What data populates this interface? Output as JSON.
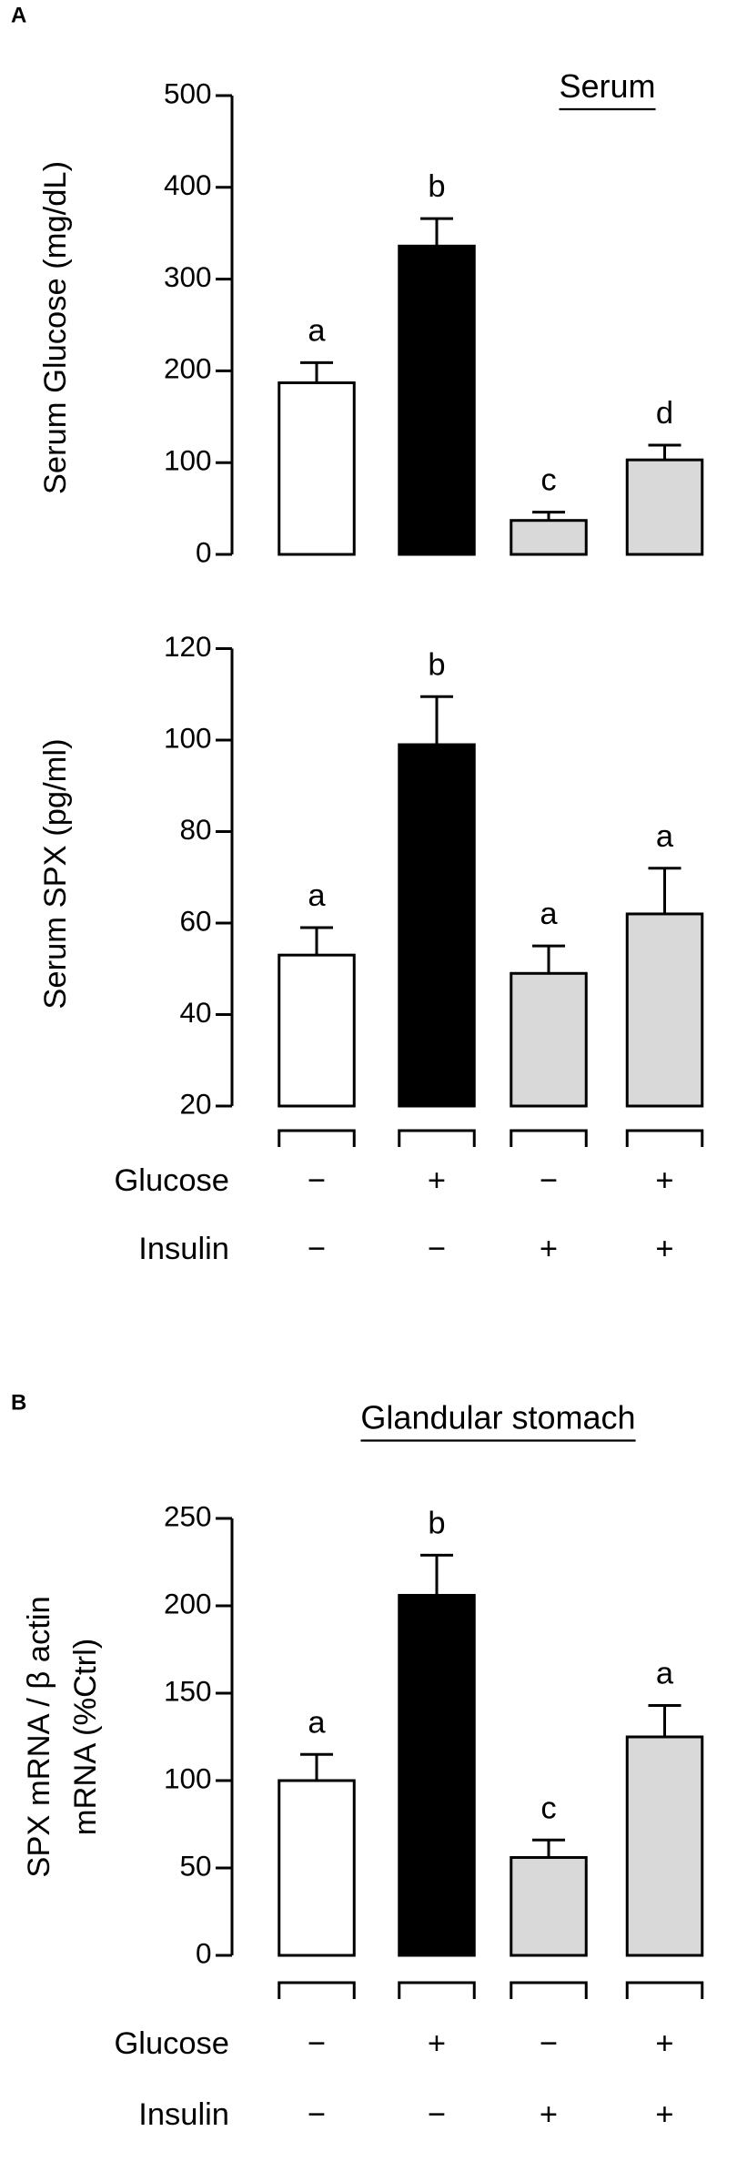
{
  "chart_data": [
    {
      "type": "bar",
      "panel_label": "A",
      "title": "Serum",
      "y_label": [
        "Serum Glucose (mg/dL)"
      ],
      "categories": [
        null,
        null,
        null,
        null
      ],
      "values": [
        187,
        336,
        37,
        103
      ],
      "errors": [
        22,
        30,
        9,
        16
      ],
      "annotations": [
        "a",
        "b",
        "c",
        "d"
      ],
      "colors": [
        "#ffffff",
        "#000000",
        "#d9d9d9",
        "#d9d9d9"
      ],
      "ylim": [
        0,
        500
      ],
      "yticks": [
        0,
        100,
        200,
        300,
        400,
        500
      ]
    },
    {
      "type": "bar",
      "y_label": [
        "Serum SPX (pg/ml)"
      ],
      "categories": [
        null,
        null,
        null,
        null
      ],
      "values": [
        53,
        99,
        49,
        62
      ],
      "errors": [
        6,
        10.5,
        6,
        10
      ],
      "annotations": [
        "a",
        "b",
        "a",
        "a"
      ],
      "colors": [
        "#ffffff",
        "#000000",
        "#d9d9d9",
        "#d9d9d9"
      ],
      "ylim": [
        20,
        120
      ],
      "yticks": [
        20,
        40,
        60,
        80,
        100,
        120
      ],
      "treatments": [
        {
          "name": "Glucose",
          "values": [
            "−",
            "+",
            "−",
            "+"
          ]
        },
        {
          "name": "Insulin",
          "values": [
            "−",
            "−",
            "+",
            "+"
          ]
        }
      ]
    },
    {
      "type": "bar",
      "panel_label": "B",
      "title": "Glandular stomach",
      "y_label": [
        "SPX mRNA / β actin",
        "mRNA (%Ctrl)"
      ],
      "categories": [
        null,
        null,
        null,
        null
      ],
      "values": [
        100,
        206,
        56,
        125
      ],
      "errors": [
        15,
        23,
        10,
        18
      ],
      "annotations": [
        "a",
        "b",
        "c",
        "a"
      ],
      "colors": [
        "#ffffff",
        "#000000",
        "#d9d9d9",
        "#d9d9d9"
      ],
      "ylim": [
        0,
        250
      ],
      "yticks": [
        0,
        50,
        100,
        150,
        200,
        250
      ],
      "treatments": [
        {
          "name": "Glucose",
          "values": [
            "−",
            "+",
            "−",
            "+"
          ]
        },
        {
          "name": "Insulin",
          "values": [
            "−",
            "−",
            "+",
            "+"
          ]
        }
      ]
    }
  ]
}
